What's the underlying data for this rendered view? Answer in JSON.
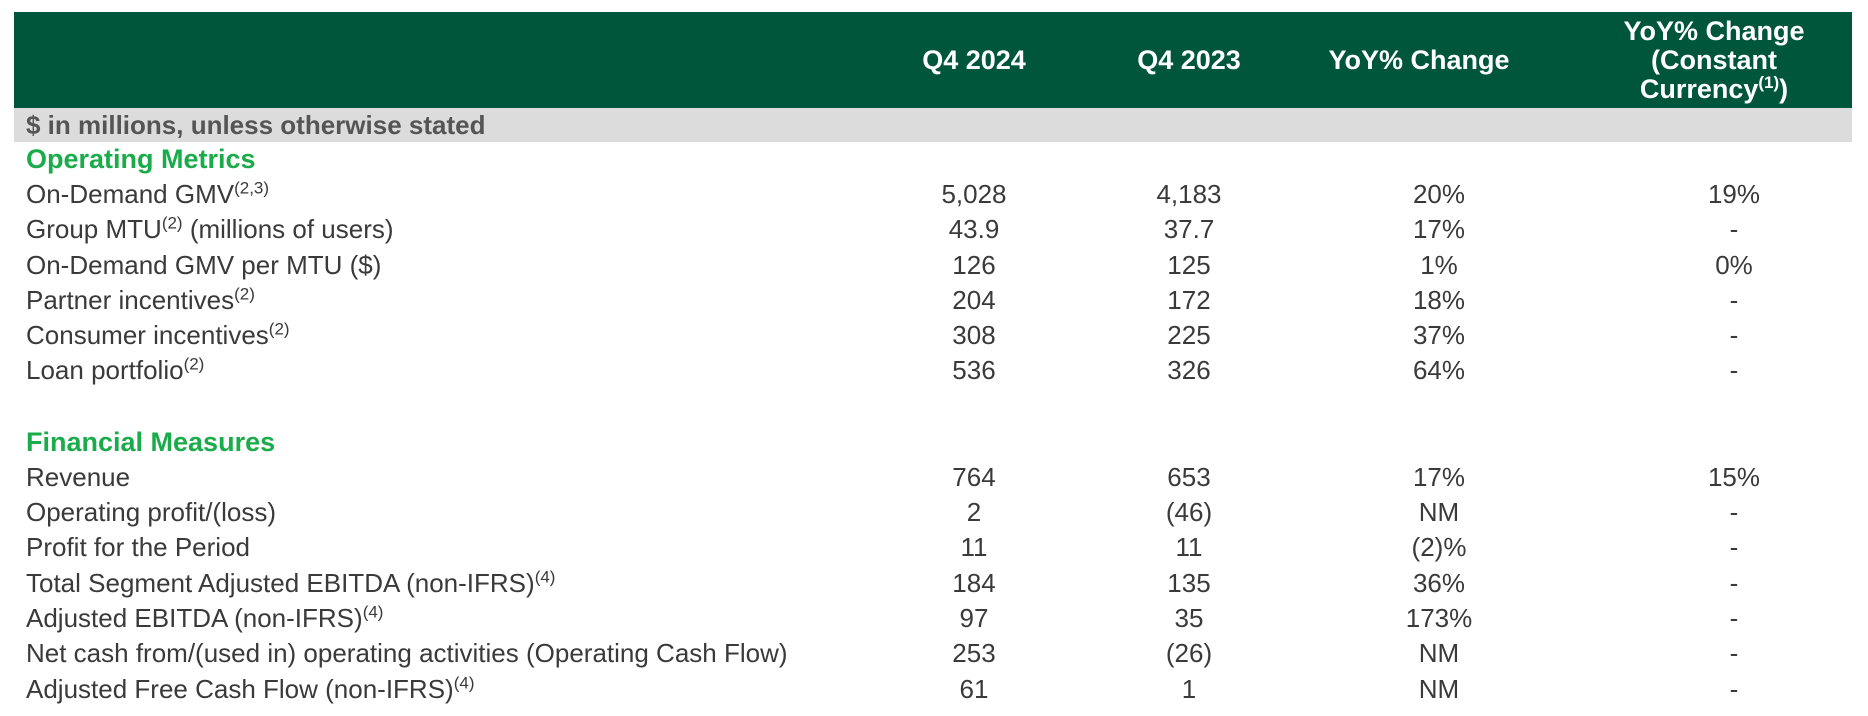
{
  "header": {
    "col1": "Q4 2024",
    "col2": "Q4 2023",
    "col3": "YoY% Change",
    "col4_line1": "YoY% Change",
    "col4_line2": "(Constant",
    "col4_line3_text": "Currency",
    "col4_line3_sup": "(1)",
    "col4_line3_end": ")"
  },
  "units_note": "$ in millions, unless otherwise stated",
  "sections": {
    "operating": {
      "title": "Operating Metrics",
      "rows": [
        {
          "label": "On-Demand GMV",
          "sup": "(2,3)",
          "suffix": "",
          "q4_2024": "5,028",
          "q4_2023": "4,183",
          "yoy": "20%",
          "yoy_cc": "19%"
        },
        {
          "label": "Group MTU",
          "sup": "(2)",
          "suffix": " (millions of users)",
          "q4_2024": "43.9",
          "q4_2023": "37.7",
          "yoy": "17%",
          "yoy_cc": "-"
        },
        {
          "label": "On-Demand GMV per MTU ($)",
          "sup": "",
          "suffix": "",
          "q4_2024": "126",
          "q4_2023": "125",
          "yoy": "1%",
          "yoy_cc": "0%"
        },
        {
          "label": "Partner incentives",
          "sup": "(2)",
          "suffix": "",
          "q4_2024": "204",
          "q4_2023": "172",
          "yoy": "18%",
          "yoy_cc": "-"
        },
        {
          "label": "Consumer incentives",
          "sup": "(2)",
          "suffix": "",
          "q4_2024": "308",
          "q4_2023": "225",
          "yoy": "37%",
          "yoy_cc": "-"
        },
        {
          "label": "Loan portfolio",
          "sup": "(2)",
          "suffix": "",
          "q4_2024": "536",
          "q4_2023": "326",
          "yoy": "64%",
          "yoy_cc": "-"
        }
      ]
    },
    "financial": {
      "title": "Financial Measures",
      "rows": [
        {
          "label": "Revenue",
          "sup": "",
          "suffix": "",
          "q4_2024": "764",
          "q4_2023": "653",
          "yoy": "17%",
          "yoy_cc": "15%"
        },
        {
          "label": "Operating profit/(loss)",
          "sup": "",
          "suffix": "",
          "q4_2024": "2",
          "q4_2023": "(46)",
          "yoy": "NM",
          "yoy_cc": "-"
        },
        {
          "label": "Profit for the Period",
          "sup": "",
          "suffix": "",
          "q4_2024": "11",
          "q4_2023": "11",
          "yoy": "(2)%",
          "yoy_cc": "-"
        },
        {
          "label": "Total Segment Adjusted EBITDA (non-IFRS)",
          "sup": "(4)",
          "suffix": "",
          "q4_2024": "184",
          "q4_2023": "135",
          "yoy": "36%",
          "yoy_cc": "-"
        },
        {
          "label": "Adjusted EBITDA (non-IFRS)",
          "sup": "(4)",
          "suffix": "",
          "q4_2024": "97",
          "q4_2023": "35",
          "yoy": "173%",
          "yoy_cc": "-"
        },
        {
          "label": "Net cash from/(used in) operating activities (Operating Cash Flow)",
          "sup": "",
          "suffix": "",
          "q4_2024": "253",
          "q4_2023": "(26)",
          "yoy": "NM",
          "yoy_cc": "-"
        },
        {
          "label": "Adjusted Free Cash Flow (non-IFRS)",
          "sup": "(4)",
          "suffix": "",
          "q4_2024": "61",
          "q4_2023": "1",
          "yoy": "NM",
          "yoy_cc": "-"
        }
      ]
    }
  },
  "colors": {
    "header_bg": "#00563b",
    "header_text": "#ffffff",
    "section_title": "#1aab4b",
    "units_bg": "#dcdcdc",
    "body_text": "#3a3a3a"
  }
}
